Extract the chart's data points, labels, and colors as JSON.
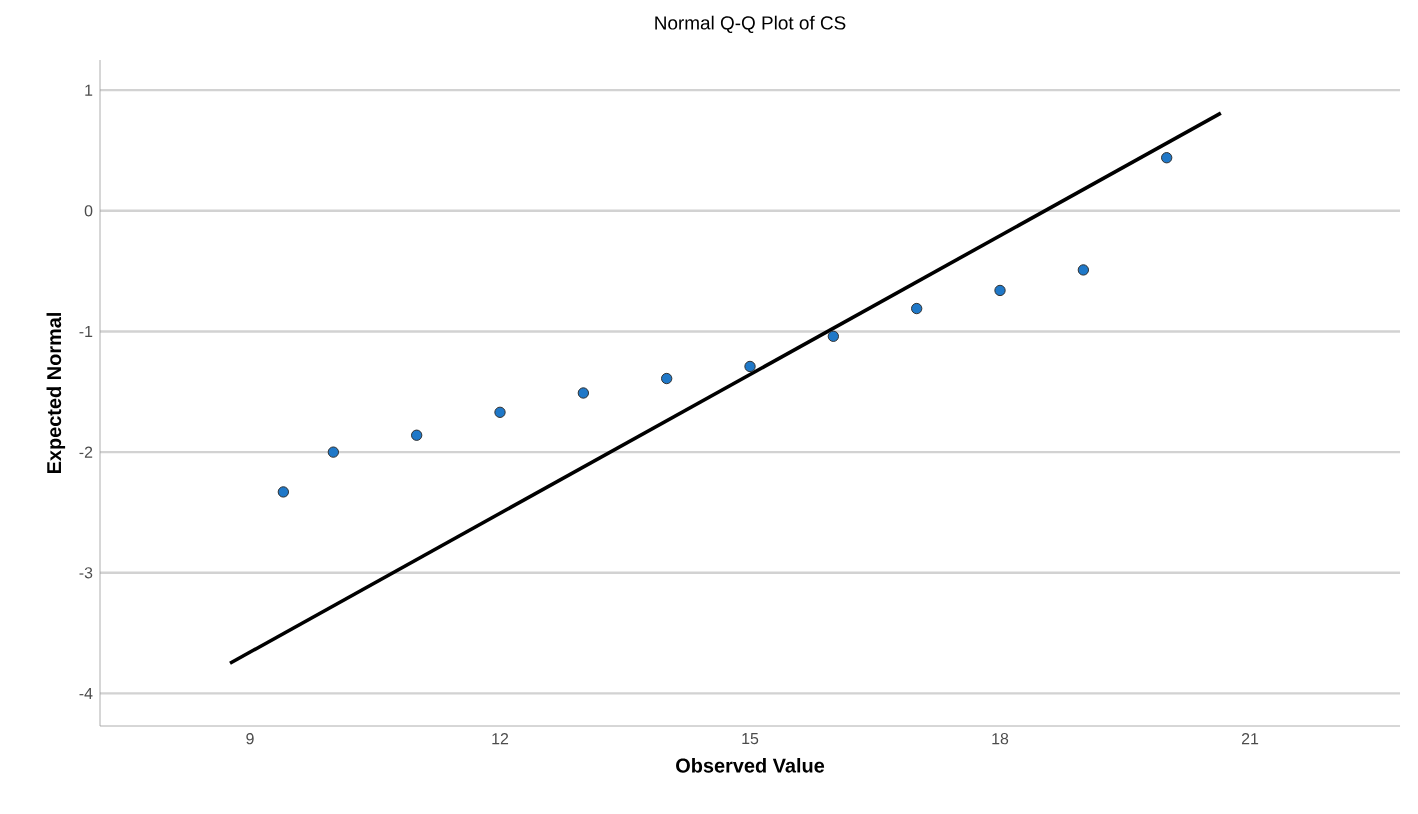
{
  "chart_data": {
    "type": "scatter",
    "title": "Normal Q-Q Plot of CS",
    "xlabel": "Observed Value",
    "ylabel": "Expected Normal",
    "grid": "y",
    "marker": "circle",
    "xlim": [
      7.2,
      22.8
    ],
    "ylim": [
      -4.27,
      1.25
    ],
    "xticks": [
      9,
      12,
      15,
      18,
      21
    ],
    "yticks": [
      -4,
      -3,
      -2,
      -1,
      0,
      1
    ],
    "series": [
      {
        "color": "#1f78c8",
        "x": [
          9.4,
          10,
          11,
          12,
          13,
          14,
          15,
          16,
          17,
          18,
          19,
          20
        ],
        "values": [
          -2.33,
          -2.0,
          -1.86,
          -1.67,
          -1.51,
          -1.39,
          -1.29,
          -1.04,
          -0.81,
          -0.66,
          -0.49,
          0.44
        ]
      },
      {
        "type": "line",
        "marker": "none",
        "color": "#000000",
        "x": [
          8.76,
          20.65
        ],
        "values": [
          -3.75,
          0.81
        ]
      }
    ]
  }
}
